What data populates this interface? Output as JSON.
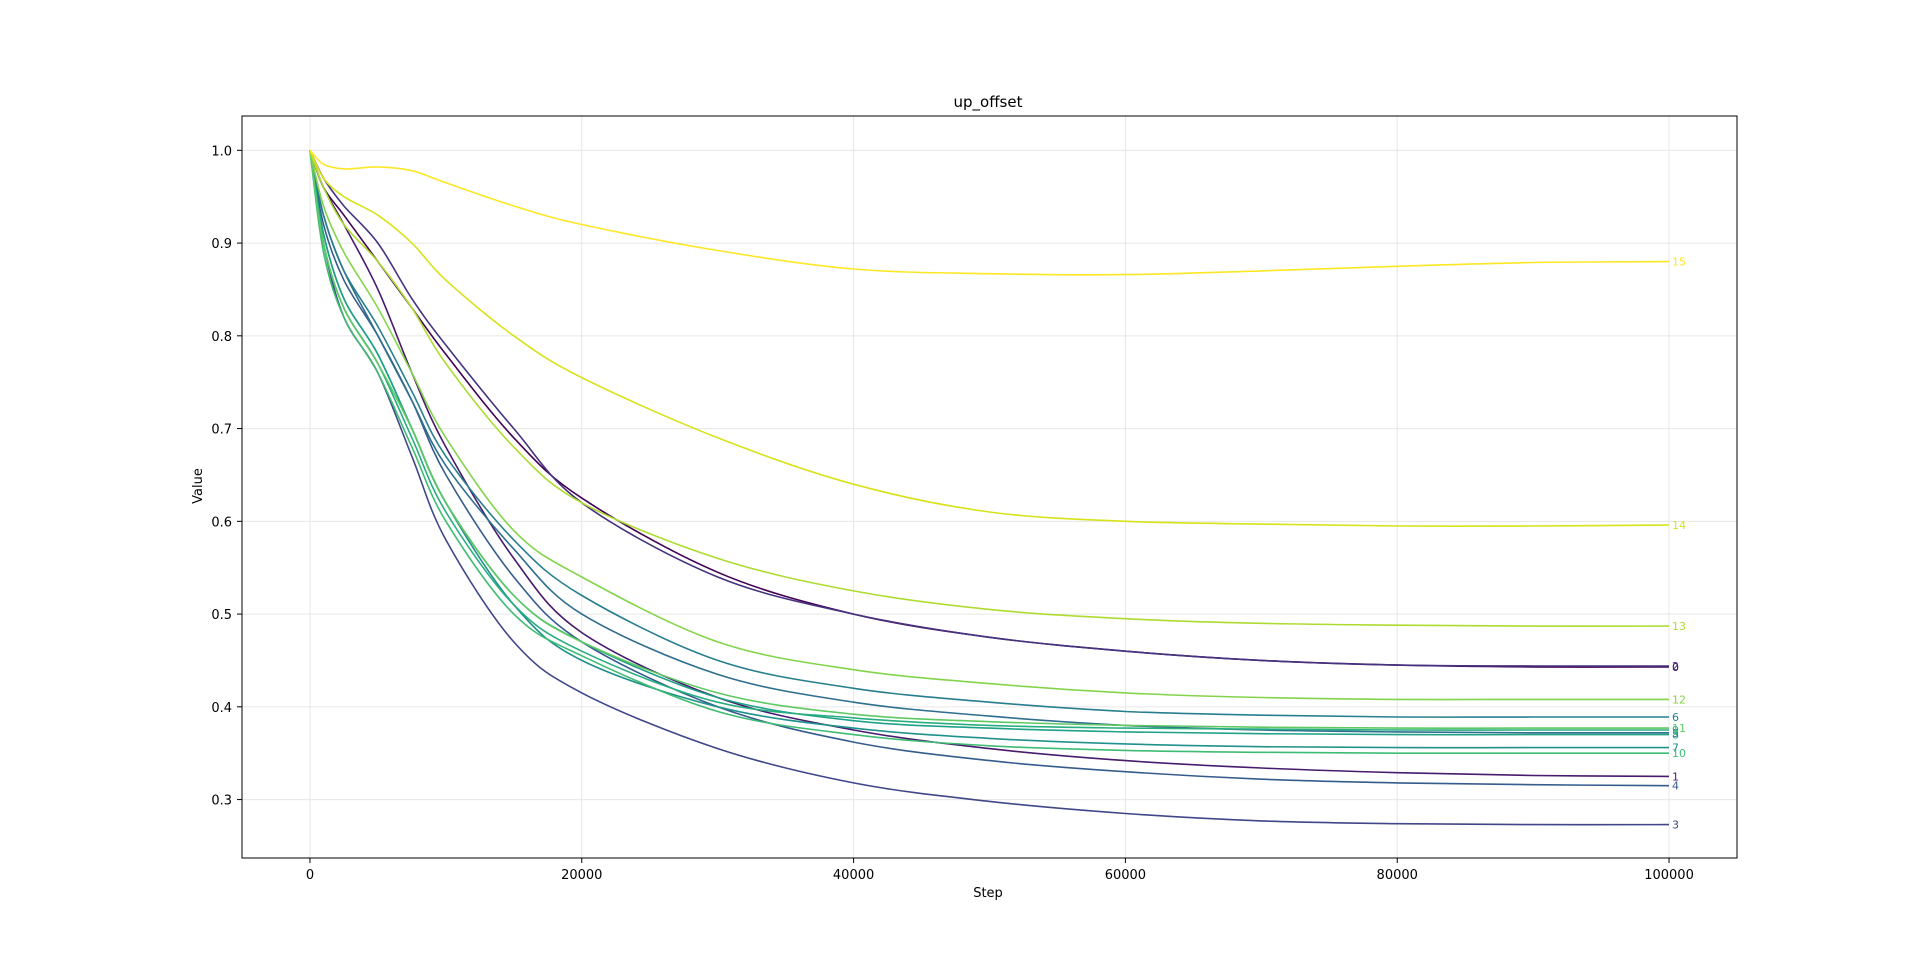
{
  "chart_data": {
    "type": "line",
    "title": "up_offset",
    "xlabel": "Step",
    "ylabel": "Value",
    "xlim": [
      -5000,
      105000
    ],
    "ylim": [
      0.237,
      1.037
    ],
    "xticks": [
      0,
      20000,
      40000,
      60000,
      80000,
      100000
    ],
    "xtick_labels": [
      "0",
      "20000",
      "40000",
      "60000",
      "80000",
      "100000"
    ],
    "yticks": [
      0.3,
      0.4,
      0.5,
      0.6,
      0.7,
      0.8,
      0.9,
      1.0
    ],
    "ytick_labels": [
      "0.3",
      "0.4",
      "0.5",
      "0.6",
      "0.7",
      "0.8",
      "0.9",
      "1.0"
    ],
    "grid": true,
    "x": [
      0,
      1000,
      2500,
      5000,
      7500,
      10000,
      15000,
      20000,
      30000,
      40000,
      50000,
      60000,
      70000,
      80000,
      90000,
      100000
    ],
    "series": [
      {
        "name": "0",
        "color": "#440154",
        "values": [
          1.0,
          0.96,
          0.93,
          0.88,
          0.83,
          0.78,
          0.69,
          0.625,
          0.545,
          0.5,
          0.475,
          0.46,
          0.45,
          0.445,
          0.443,
          0.443
        ]
      },
      {
        "name": "1",
        "color": "#481b6d",
        "values": [
          1.0,
          0.96,
          0.92,
          0.85,
          0.76,
          0.68,
          0.56,
          0.48,
          0.41,
          0.375,
          0.355,
          0.342,
          0.334,
          0.329,
          0.326,
          0.325
        ]
      },
      {
        "name": "2",
        "color": "#46327e",
        "values": [
          1.0,
          0.97,
          0.94,
          0.9,
          0.84,
          0.79,
          0.7,
          0.62,
          0.54,
          0.5,
          0.475,
          0.46,
          0.45,
          0.445,
          0.444,
          0.444
        ]
      },
      {
        "name": "3",
        "color": "#3f4788",
        "values": [
          1.0,
          0.9,
          0.82,
          0.76,
          0.67,
          0.58,
          0.47,
          0.415,
          0.355,
          0.318,
          0.298,
          0.285,
          0.277,
          0.274,
          0.273,
          0.273
        ]
      },
      {
        "name": "4",
        "color": "#365c8d",
        "values": [
          1.0,
          0.92,
          0.86,
          0.8,
          0.73,
          0.65,
          0.54,
          0.47,
          0.4,
          0.362,
          0.342,
          0.33,
          0.322,
          0.318,
          0.316,
          0.315
        ]
      },
      {
        "name": "5",
        "color": "#2e6e8e",
        "values": [
          1.0,
          0.93,
          0.87,
          0.8,
          0.73,
          0.66,
          0.57,
          0.5,
          0.435,
          0.405,
          0.39,
          0.38,
          0.375,
          0.373,
          0.372,
          0.372
        ]
      },
      {
        "name": "6",
        "color": "#277f8e",
        "values": [
          1.0,
          0.93,
          0.87,
          0.81,
          0.74,
          0.67,
          0.58,
          0.52,
          0.45,
          0.42,
          0.405,
          0.395,
          0.391,
          0.389,
          0.389,
          0.389
        ]
      },
      {
        "name": "7",
        "color": "#21918c",
        "values": [
          1.0,
          0.91,
          0.84,
          0.78,
          0.7,
          0.62,
          0.51,
          0.45,
          0.4,
          0.377,
          0.366,
          0.36,
          0.357,
          0.356,
          0.356,
          0.356
        ]
      },
      {
        "name": "8",
        "color": "#1fa188",
        "values": [
          1.0,
          0.91,
          0.84,
          0.78,
          0.7,
          0.62,
          0.52,
          0.47,
          0.41,
          0.385,
          0.377,
          0.373,
          0.371,
          0.37,
          0.37,
          0.37
        ]
      },
      {
        "name": "9",
        "color": "#28ae80",
        "values": [
          1.0,
          0.9,
          0.83,
          0.77,
          0.69,
          0.61,
          0.51,
          0.46,
          0.405,
          0.388,
          0.38,
          0.377,
          0.376,
          0.375,
          0.375,
          0.375
        ]
      },
      {
        "name": "10",
        "color": "#3fbc73",
        "values": [
          1.0,
          0.89,
          0.82,
          0.76,
          0.68,
          0.6,
          0.5,
          0.455,
          0.395,
          0.37,
          0.358,
          0.353,
          0.351,
          0.35,
          0.35,
          0.35
        ]
      },
      {
        "name": "11",
        "color": "#5ec962",
        "values": [
          1.0,
          0.9,
          0.83,
          0.77,
          0.7,
          0.62,
          0.52,
          0.47,
          0.415,
          0.392,
          0.384,
          0.38,
          0.378,
          0.377,
          0.377,
          0.377
        ]
      },
      {
        "name": "12",
        "color": "#84d44b",
        "values": [
          1.0,
          0.94,
          0.89,
          0.83,
          0.76,
          0.69,
          0.59,
          0.54,
          0.47,
          0.44,
          0.425,
          0.415,
          0.41,
          0.408,
          0.408,
          0.408
        ]
      },
      {
        "name": "13",
        "color": "#addc30",
        "values": [
          1.0,
          0.96,
          0.92,
          0.88,
          0.83,
          0.77,
          0.68,
          0.62,
          0.56,
          0.525,
          0.505,
          0.495,
          0.49,
          0.488,
          0.487,
          0.487
        ]
      },
      {
        "name": "14",
        "color": "#d8e219",
        "values": [
          1.0,
          0.97,
          0.95,
          0.93,
          0.9,
          0.86,
          0.8,
          0.755,
          0.69,
          0.64,
          0.61,
          0.6,
          0.597,
          0.595,
          0.595,
          0.596
        ]
      },
      {
        "name": "15",
        "color": "#fde725",
        "values": [
          1.0,
          0.985,
          0.98,
          0.982,
          0.978,
          0.965,
          0.94,
          0.92,
          0.892,
          0.872,
          0.867,
          0.866,
          0.87,
          0.875,
          0.879,
          0.88
        ]
      }
    ],
    "end_labels": true
  }
}
